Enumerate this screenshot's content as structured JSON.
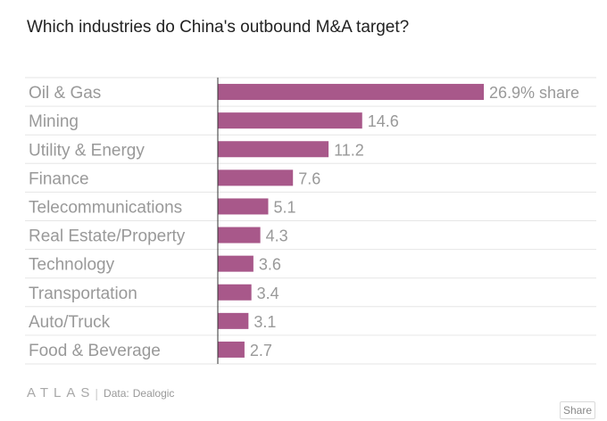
{
  "title": "Which industries do China's outbound M&A target?",
  "footer": {
    "logo": "ATLAS",
    "separator": "|",
    "source_prefix": "Data:",
    "source": "Dealogic"
  },
  "share_label": "Share",
  "colors": {
    "bar": "#a8588a",
    "grid": "#e6e6e6",
    "axis": "#333333",
    "text": "#999999"
  },
  "chart_data": {
    "type": "bar",
    "orientation": "horizontal",
    "title": "Which industries do China's outbound M&A target?",
    "categories": [
      "Oil & Gas",
      "Mining",
      "Utility & Energy",
      "Finance",
      "Telecommunications",
      "Real Estate/Property",
      "Technology",
      "Transportation",
      "Auto/Truck",
      "Food & Beverage"
    ],
    "values": [
      26.9,
      14.6,
      11.2,
      7.6,
      5.1,
      4.3,
      3.6,
      3.4,
      3.1,
      2.7
    ],
    "value_labels": [
      "26.9% share",
      "14.6",
      "11.2",
      "7.6",
      "5.1",
      "4.3",
      "3.6",
      "3.4",
      "3.1",
      "2.7"
    ],
    "unit": "% share",
    "xlim": [
      0,
      26.9
    ],
    "source": "Dealogic"
  }
}
